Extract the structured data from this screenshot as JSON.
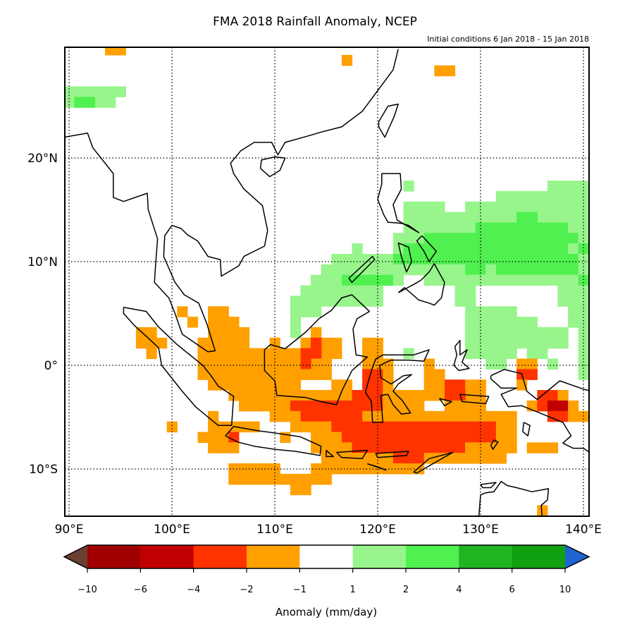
{
  "chart_data": {
    "type": "heatmap",
    "title": "FMA 2018 Rainfall Anomaly, NCEP",
    "subtitle": "Initial conditions 6 Jan 2018 - 15 Jan 2018",
    "lon_range": [
      89.6,
      140.5
    ],
    "lat_range": [
      -14.6,
      30.4
    ],
    "grid": true,
    "lon_ticks": [
      {
        "value": 90,
        "label": "90°E"
      },
      {
        "value": 100,
        "label": "100°E"
      },
      {
        "value": 110,
        "label": "110°E"
      },
      {
        "value": 120,
        "label": "120°E"
      },
      {
        "value": 130,
        "label": "130°E"
      },
      {
        "value": 140,
        "label": "140°E"
      }
    ],
    "lat_ticks": [
      {
        "value": 20,
        "label": "20°N"
      },
      {
        "value": 10,
        "label": "10°N"
      },
      {
        "value": 0,
        "label": "0°"
      },
      {
        "value": -10,
        "label": "10°S"
      }
    ],
    "colorbar": {
      "label": "Anomaly (mm/day)",
      "tick_labels": [
        "−10",
        "−6",
        "−4",
        "−2",
        "−1",
        "1",
        "2",
        "4",
        "6",
        "10"
      ],
      "bins": [
        {
          "range": "< -10",
          "color": "#6b4032"
        },
        {
          "range": "-10 to -6",
          "color": "#a00000"
        },
        {
          "range": "-6 to -4",
          "color": "#c00000"
        },
        {
          "range": "-4 to -2",
          "color": "#ff3300"
        },
        {
          "range": "-2 to -1",
          "color": "#ffa000"
        },
        {
          "range": "-1 to 1",
          "color": "#ffffff"
        },
        {
          "range": "1 to 2",
          "color": "#98f58c"
        },
        {
          "range": "2 to 4",
          "color": "#50f050"
        },
        {
          "range": "4 to 6",
          "color": "#20b420"
        },
        {
          "range": "6 to 10",
          "color": "#10a010"
        },
        {
          "range": "> 10",
          "color": "#1e64d2"
        }
      ]
    },
    "cells_note_format": "rows by latitude; runs = [lon_start, lon_end, bin_index]",
    "cells": [
      {
        "lat": 30,
        "runs": [
          [
            94,
            95,
            4
          ]
        ]
      },
      {
        "lat": 29,
        "runs": [
          [
            117,
            117,
            4
          ]
        ]
      },
      {
        "lat": 28,
        "runs": [
          [
            126,
            127,
            4
          ]
        ]
      },
      {
        "lat": 26,
        "runs": [
          [
            90,
            95,
            6
          ]
        ]
      },
      {
        "lat": 25,
        "runs": [
          [
            90,
            94,
            6
          ],
          [
            91,
            92,
            7
          ]
        ]
      },
      {
        "lat": 17,
        "runs": [
          [
            123,
            123,
            6
          ],
          [
            137,
            140,
            6
          ]
        ]
      },
      {
        "lat": 16,
        "runs": [
          [
            132,
            140,
            6
          ]
        ]
      },
      {
        "lat": 15,
        "runs": [
          [
            123,
            126,
            6
          ],
          [
            129,
            140,
            6
          ]
        ]
      },
      {
        "lat": 14,
        "runs": [
          [
            123,
            140,
            6
          ],
          [
            134,
            135,
            7
          ]
        ]
      },
      {
        "lat": 13,
        "runs": [
          [
            123,
            129,
            6
          ],
          [
            130,
            138,
            7
          ],
          [
            139,
            140,
            6
          ]
        ]
      },
      {
        "lat": 12,
        "runs": [
          [
            122,
            124,
            6
          ],
          [
            125,
            139,
            7
          ],
          [
            140,
            140,
            6
          ]
        ]
      },
      {
        "lat": 11,
        "runs": [
          [
            118,
            118,
            6
          ],
          [
            122,
            122,
            6
          ],
          [
            123,
            138,
            7
          ],
          [
            139,
            139,
            6
          ],
          [
            140,
            140,
            7
          ]
        ]
      },
      {
        "lat": 10,
        "runs": [
          [
            116,
            121,
            6
          ],
          [
            122,
            139,
            7
          ],
          [
            140,
            140,
            6
          ]
        ]
      },
      {
        "lat": 9,
        "runs": [
          [
            115,
            128,
            6
          ],
          [
            129,
            130,
            7
          ],
          [
            131,
            131,
            6
          ],
          [
            132,
            139,
            7
          ],
          [
            140,
            140,
            6
          ]
        ]
      },
      {
        "lat": 8,
        "runs": [
          [
            114,
            116,
            6
          ],
          [
            117,
            121,
            7
          ],
          [
            122,
            122,
            6
          ],
          [
            125,
            139,
            6
          ],
          [
            140,
            140,
            7
          ]
        ]
      },
      {
        "lat": 7,
        "runs": [
          [
            113,
            120,
            6
          ],
          [
            128,
            129,
            6
          ],
          [
            138,
            140,
            6
          ]
        ]
      },
      {
        "lat": 6,
        "runs": [
          [
            112,
            120,
            6
          ],
          [
            128,
            129,
            6
          ],
          [
            138,
            140,
            6
          ]
        ]
      },
      {
        "lat": 5,
        "runs": [
          [
            101,
            101,
            4
          ],
          [
            104,
            105,
            4
          ],
          [
            112,
            114,
            6
          ],
          [
            129,
            133,
            6
          ],
          [
            139,
            140,
            6
          ]
        ]
      },
      {
        "lat": 4,
        "runs": [
          [
            102,
            102,
            4
          ],
          [
            104,
            106,
            4
          ],
          [
            112,
            112,
            6
          ],
          [
            129,
            135,
            6
          ],
          [
            139,
            140,
            6
          ]
        ]
      },
      {
        "lat": 3,
        "runs": [
          [
            97,
            98,
            4
          ],
          [
            104,
            107,
            4
          ],
          [
            112,
            112,
            6
          ],
          [
            114,
            114,
            4
          ],
          [
            129,
            138,
            6
          ],
          [
            140,
            140,
            6
          ]
        ]
      },
      {
        "lat": 2,
        "runs": [
          [
            97,
            99,
            4
          ],
          [
            103,
            107,
            4
          ],
          [
            110,
            110,
            4
          ],
          [
            113,
            116,
            4
          ],
          [
            114,
            114,
            3
          ],
          [
            119,
            120,
            4
          ],
          [
            129,
            138,
            6
          ],
          [
            140,
            140,
            6
          ]
        ]
      },
      {
        "lat": 1,
        "runs": [
          [
            98,
            98,
            4
          ],
          [
            103,
            116,
            4
          ],
          [
            113,
            114,
            3
          ],
          [
            119,
            120,
            4
          ],
          [
            123,
            123,
            6
          ],
          [
            129,
            133,
            6
          ],
          [
            135,
            136,
            6
          ],
          [
            140,
            140,
            6
          ]
        ]
      },
      {
        "lat": 0,
        "runs": [
          [
            103,
            115,
            4
          ],
          [
            113,
            113,
            3
          ],
          [
            119,
            121,
            4
          ],
          [
            125,
            125,
            4
          ],
          [
            131,
            132,
            6
          ],
          [
            134,
            135,
            4
          ],
          [
            137,
            137,
            6
          ],
          [
            140,
            140,
            6
          ]
        ]
      },
      {
        "lat": -1,
        "runs": [
          [
            103,
            115,
            4
          ],
          [
            119,
            120,
            3
          ],
          [
            121,
            121,
            4
          ],
          [
            125,
            126,
            4
          ],
          [
            134,
            135,
            3
          ],
          [
            140,
            140,
            6
          ]
        ]
      },
      {
        "lat": -2,
        "runs": [
          [
            104,
            112,
            4
          ],
          [
            116,
            117,
            4
          ],
          [
            119,
            120,
            3
          ],
          [
            121,
            121,
            4
          ],
          [
            125,
            126,
            4
          ],
          [
            127,
            128,
            3
          ],
          [
            129,
            130,
            4
          ],
          [
            134,
            134,
            4
          ]
        ]
      },
      {
        "lat": -3,
        "runs": [
          [
            106,
            117,
            4
          ],
          [
            118,
            120,
            3
          ],
          [
            121,
            130,
            4
          ],
          [
            127,
            128,
            3
          ],
          [
            136,
            137,
            3
          ],
          [
            138,
            138,
            4
          ]
        ]
      },
      {
        "lat": -4,
        "runs": [
          [
            107,
            111,
            4
          ],
          [
            112,
            120,
            3
          ],
          [
            121,
            124,
            4
          ],
          [
            127,
            130,
            4
          ],
          [
            135,
            135,
            4
          ],
          [
            136,
            136,
            3
          ],
          [
            137,
            138,
            2
          ],
          [
            139,
            139,
            4
          ]
        ]
      },
      {
        "lat": -5,
        "runs": [
          [
            104,
            104,
            4
          ],
          [
            110,
            112,
            4
          ],
          [
            113,
            118,
            3
          ],
          [
            119,
            133,
            4
          ],
          [
            137,
            138,
            3
          ],
          [
            139,
            140,
            4
          ]
        ]
      },
      {
        "lat": -6,
        "runs": [
          [
            100,
            100,
            4
          ],
          [
            104,
            108,
            4
          ],
          [
            112,
            115,
            4
          ],
          [
            116,
            131,
            3
          ],
          [
            132,
            133,
            4
          ]
        ]
      },
      {
        "lat": -7,
        "runs": [
          [
            103,
            106,
            4
          ],
          [
            106,
            106,
            3
          ],
          [
            111,
            111,
            4
          ],
          [
            114,
            116,
            4
          ],
          [
            117,
            131,
            3
          ],
          [
            132,
            133,
            4
          ]
        ]
      },
      {
        "lat": -8,
        "runs": [
          [
            104,
            106,
            4
          ],
          [
            114,
            117,
            4
          ],
          [
            118,
            128,
            3
          ],
          [
            129,
            133,
            4
          ],
          [
            135,
            137,
            4
          ]
        ]
      },
      {
        "lat": -9,
        "runs": [
          [
            115,
            121,
            4
          ],
          [
            122,
            124,
            3
          ],
          [
            125,
            132,
            4
          ]
        ]
      },
      {
        "lat": -10,
        "runs": [
          [
            106,
            110,
            4
          ],
          [
            114,
            124,
            4
          ]
        ]
      },
      {
        "lat": -11,
        "runs": [
          [
            106,
            115,
            4
          ]
        ]
      },
      {
        "lat": -12,
        "runs": [
          [
            112,
            113,
            4
          ]
        ]
      },
      {
        "lat": -14,
        "runs": [
          [
            136,
            136,
            4
          ]
        ]
      }
    ]
  }
}
